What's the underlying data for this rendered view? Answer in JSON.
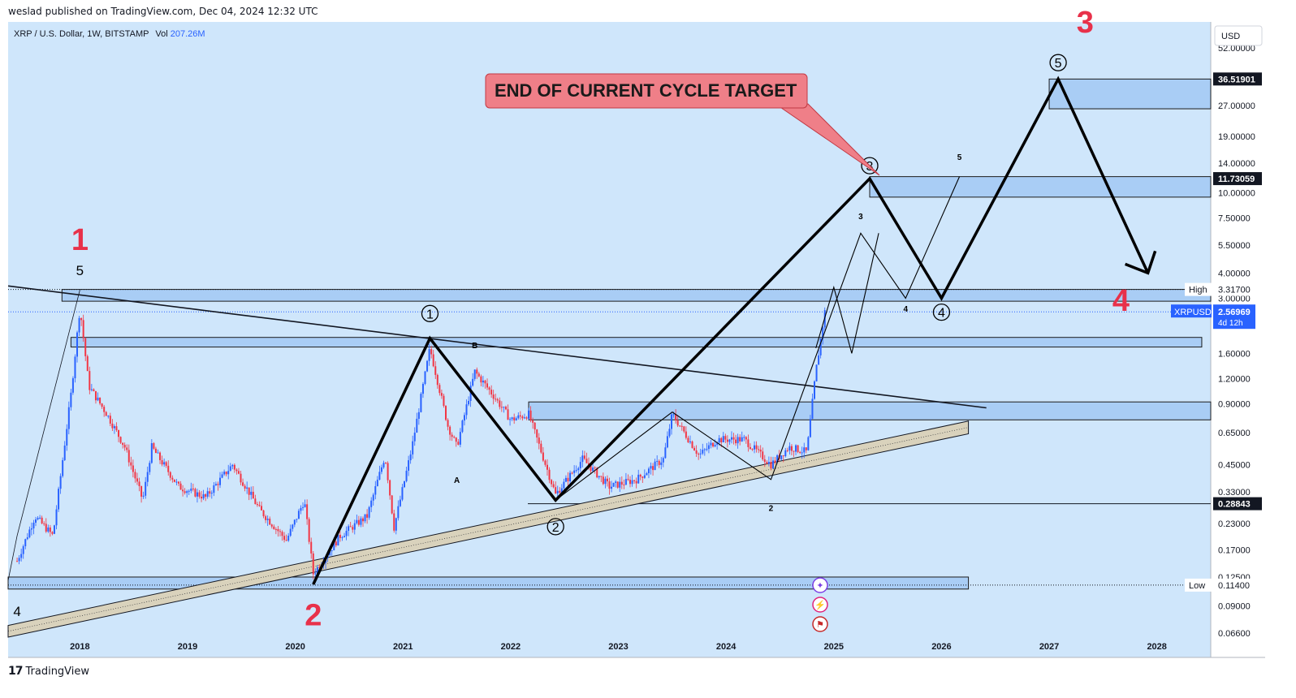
{
  "header": {
    "published": "weslad published on TradingView.com, Dec 04, 2024 12:32 UTC"
  },
  "legend": {
    "symbol": "XRP / U.S. Dollar, 1W, BITSTAMP",
    "vol_label": "Vol",
    "vol_value": "207.26M"
  },
  "footer": {
    "logo_mark": "17",
    "brand": "TradingView"
  },
  "annotation": {
    "callout": "END OF CURRENT CYCLE TARGET"
  },
  "colors": {
    "background": "#cfe6fb",
    "zone": "#a9cdf5",
    "up": "#2962ff",
    "down": "#f23645",
    "accent_red": "#e8314a",
    "callout_fill": "#ef7f88"
  },
  "chart_data": {
    "type": "candlestick",
    "symbol": "XRPUSD",
    "interval": "1W",
    "exchange": "BITSTAMP",
    "currency": "USD",
    "y_scale": "log",
    "ylim": [
      0.05,
      70
    ],
    "xlim": [
      "2017-05",
      "2028-07"
    ],
    "x_ticks": [
      "2018",
      "2019",
      "2020",
      "2021",
      "2022",
      "2023",
      "2024",
      "2025",
      "2026",
      "2027",
      "2028"
    ],
    "y_ticks": [
      "52.00000",
      "27.00000",
      "19.00000",
      "14.00000",
      "10.00000",
      "7.50000",
      "5.50000",
      "4.00000",
      "3.00000",
      "1.60000",
      "1.20000",
      "0.90000",
      "0.65000",
      "0.45000",
      "0.33000",
      "0.23000",
      "0.17000",
      "0.12500",
      "0.09000",
      "0.06600"
    ],
    "price_tags": [
      {
        "label": "",
        "value": "36.51901",
        "style": "dark"
      },
      {
        "label": "",
        "value": "11.73059",
        "style": "dark"
      },
      {
        "label": "High",
        "value": "3.31700",
        "style": "light"
      },
      {
        "label": "XRPUSD",
        "value": "2.56969",
        "sub": "4d 12h",
        "style": "blue"
      },
      {
        "label": "",
        "value": "0.28843",
        "style": "dark"
      },
      {
        "label": "Low",
        "value": "0.11400",
        "style": "light"
      }
    ],
    "price_path": [
      [
        "2017-06",
        0.15
      ],
      [
        "2017-08",
        0.25
      ],
      [
        "2017-10",
        0.2
      ],
      [
        "2017-12",
        1.0
      ],
      [
        "2018-01",
        2.7
      ],
      [
        "2018-02",
        1.1
      ],
      [
        "2018-04",
        0.8
      ],
      [
        "2018-06",
        0.55
      ],
      [
        "2018-08",
        0.3
      ],
      [
        "2018-09",
        0.55
      ],
      [
        "2018-12",
        0.35
      ],
      [
        "2019-03",
        0.31
      ],
      [
        "2019-06",
        0.45
      ],
      [
        "2019-09",
        0.27
      ],
      [
        "2019-12",
        0.19
      ],
      [
        "2020-02",
        0.3
      ],
      [
        "2020-03",
        0.13
      ],
      [
        "2020-06",
        0.2
      ],
      [
        "2020-09",
        0.25
      ],
      [
        "2020-11",
        0.5
      ],
      [
        "2020-12",
        0.22
      ],
      [
        "2021-02",
        0.55
      ],
      [
        "2021-04",
        1.7
      ],
      [
        "2021-06",
        0.7
      ],
      [
        "2021-07",
        0.55
      ],
      [
        "2021-09",
        1.3
      ],
      [
        "2021-11",
        1.0
      ],
      [
        "2022-01",
        0.75
      ],
      [
        "2022-03",
        0.8
      ],
      [
        "2022-06",
        0.32
      ],
      [
        "2022-09",
        0.48
      ],
      [
        "2022-12",
        0.35
      ],
      [
        "2023-03",
        0.38
      ],
      [
        "2023-06",
        0.48
      ],
      [
        "2023-07",
        0.8
      ],
      [
        "2023-10",
        0.5
      ],
      [
        "2023-12",
        0.6
      ],
      [
        "2024-03",
        0.6
      ],
      [
        "2024-06",
        0.45
      ],
      [
        "2024-08",
        0.55
      ],
      [
        "2024-10",
        0.52
      ],
      [
        "2024-11",
        1.3
      ],
      [
        "2024-12",
        2.57
      ]
    ],
    "zones": [
      {
        "from": "2017-11",
        "to": "2028-07",
        "low": 2.9,
        "high": 3.317
      },
      {
        "from": "2017-12",
        "to": "2028-06",
        "low": 1.72,
        "high": 1.92
      },
      {
        "from": "2022-03",
        "to": "2028-07",
        "low": 0.75,
        "high": 0.92
      },
      {
        "from": "2017-05",
        "to": "2026-04",
        "low": 0.109,
        "high": 0.125
      },
      {
        "from": "2025-05",
        "to": "2028-07",
        "low": 9.5,
        "high": 12.0
      },
      {
        "from": "2027-01",
        "to": "2028-07",
        "low": 26.0,
        "high": 36.5
      }
    ],
    "horizontal_lines": [
      0.28843,
      0.114,
      3.317,
      2.56969
    ],
    "trendlines": [
      {
        "name": "descending-resistance",
        "from": [
          "2017-05",
          3.45
        ],
        "to": [
          "2026-06",
          0.86
        ]
      },
      {
        "name": "rising-channel-top",
        "from": [
          "2017-05",
          0.072
        ],
        "to": [
          "2026-04",
          0.74
        ]
      },
      {
        "name": "rising-channel-bottom",
        "from": [
          "2017-05",
          0.063
        ],
        "to": [
          "2026-04",
          0.64
        ]
      }
    ],
    "wave_projection_main": [
      [
        "2020-03",
        0.115
      ],
      [
        "2021-04",
        1.9
      ],
      [
        "2022-06",
        0.3
      ],
      [
        "2025-05",
        11.73
      ],
      [
        "2026-01",
        3.0
      ],
      [
        "2027-02",
        36.5
      ],
      [
        "2027-12",
        4.0
      ]
    ],
    "wave_projection_minor": [
      [
        "2022-06",
        0.3
      ],
      [
        "2023-07",
        0.82
      ],
      [
        "2024-06",
        0.38
      ],
      [
        "2025-04",
        6.3
      ],
      [
        "2025-09",
        3.0
      ],
      [
        "2026-03",
        12.0
      ]
    ],
    "wave_labels": [
      {
        "text": "1",
        "style": "big-red",
        "at": [
          "2018-01",
          5.2
        ]
      },
      {
        "text": "2",
        "style": "big-red",
        "at": [
          "2020-03",
          0.072
        ]
      },
      {
        "text": "3",
        "style": "big-red",
        "at": [
          "2027-05",
          62
        ]
      },
      {
        "text": "4",
        "style": "big-red",
        "at": [
          "2027-09",
          2.6
        ]
      },
      {
        "text": "5",
        "style": "black",
        "at": [
          "2018-01",
          3.9
        ]
      },
      {
        "text": "4",
        "style": "black",
        "at": [
          "2017-06",
          0.08
        ]
      },
      {
        "text": "1",
        "style": "circled",
        "at": [
          "2021-04",
          2.52
        ]
      },
      {
        "text": "2",
        "style": "circled",
        "at": [
          "2022-06",
          0.222
        ]
      },
      {
        "text": "3",
        "style": "circled",
        "at": [
          "2025-05",
          13.6
        ]
      },
      {
        "text": "4",
        "style": "circled",
        "at": [
          "2026-01",
          2.56
        ]
      },
      {
        "text": "5",
        "style": "circled",
        "at": [
          "2027-02",
          44
        ]
      },
      {
        "text": "A",
        "style": "small",
        "at": [
          "2021-07",
          0.365
        ]
      },
      {
        "text": "B",
        "style": "small",
        "at": [
          "2021-09",
          1.7
        ]
      },
      {
        "text": "2",
        "style": "small",
        "at": [
          "2024-06",
          0.265
        ]
      },
      {
        "text": "3",
        "style": "small",
        "at": [
          "2025-04",
          7.4
        ]
      },
      {
        "text": "4",
        "style": "small",
        "at": [
          "2025-09",
          2.57
        ]
      },
      {
        "text": "5",
        "style": "small",
        "at": [
          "2026-03",
          14.5
        ]
      }
    ],
    "event_icons": [
      "sparkle-icon",
      "lightning-icon",
      "us-flag-icon"
    ]
  }
}
